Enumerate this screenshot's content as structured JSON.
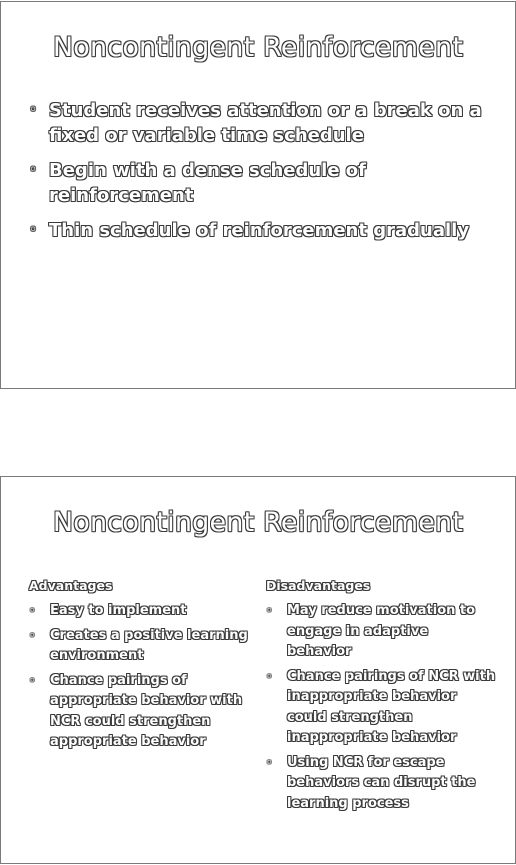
{
  "slides": [
    {
      "title": "Noncontingent Reinforcement",
      "bullets": [
        "Student receives attention or a break on a fixed or variable time schedule",
        "Begin with a dense schedule of reinforcement",
        "Thin schedule of reinforcement gradually"
      ]
    },
    {
      "title": "Noncontingent Reinforcement",
      "advantages": {
        "heading": "Advantages",
        "items": [
          "Easy to implement",
          "Creates a positive learning environment",
          "Chance pairings of appropriate behavior with NCR could strengthen appropriate behavior"
        ]
      },
      "disadvantages": {
        "heading": "Disadvantages",
        "items": [
          "May reduce motivation to engage in adaptive behavior",
          "Chance pairings of NCR with inappropriate behavior could strengthen inappropriate behavior",
          "Using NCR for escape behaviors can disrupt the learning process"
        ]
      }
    }
  ],
  "bullet_glyph": "◦"
}
